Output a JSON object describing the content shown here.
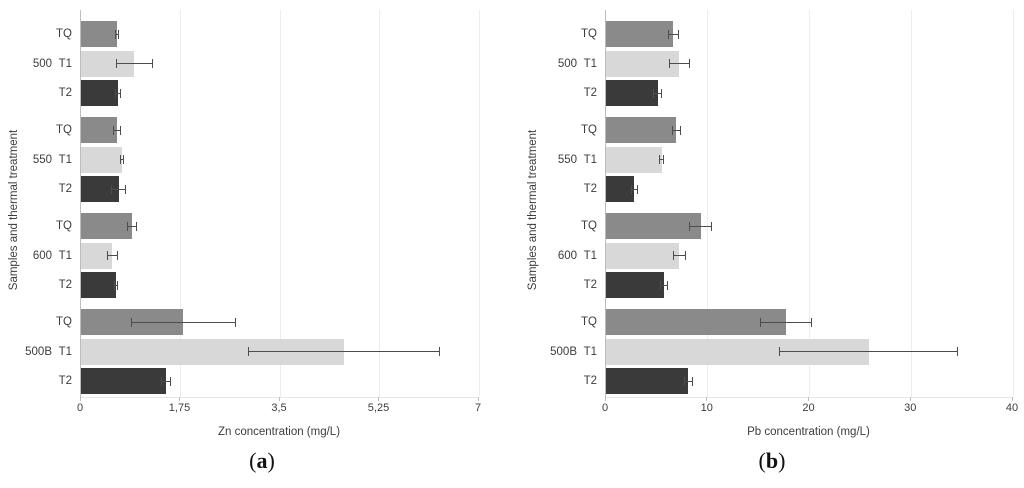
{
  "figure": {
    "background": "#ffffff",
    "text_color": "#3d3d3d",
    "gridline_color": "#ededed",
    "axis_line_color": "#bdbdbd",
    "error_bar_color": "#4d4d4d"
  },
  "chart_data": [
    {
      "type": "bar",
      "orientation": "horizontal",
      "xlabel": "Zn concentration (mg/L)",
      "ylabel": "Samples and thermal treatment",
      "caption": {
        "open": "(",
        "letter": "a",
        "close": ")"
      },
      "xlim": [
        0,
        7
      ],
      "grid": "vertical",
      "legend": "none",
      "xticks": [
        {
          "value": 0,
          "label": "0"
        },
        {
          "value": 1.75,
          "label": "1,75"
        },
        {
          "value": 3.5,
          "label": "3,5"
        },
        {
          "value": 5.25,
          "label": "5,25"
        },
        {
          "value": 7,
          "label": "7"
        }
      ],
      "series_colors": {
        "TQ": "#8a8a8a",
        "T1": "#d8d8d8",
        "T2": "#3a3a3a"
      },
      "groups": [
        {
          "label": "500",
          "bars": [
            {
              "treatment": "TQ",
              "value": 0.63,
              "error": 0.03
            },
            {
              "treatment": "T1",
              "value": 0.94,
              "error": 0.32
            },
            {
              "treatment": "T2",
              "value": 0.65,
              "error": 0.04
            }
          ]
        },
        {
          "label": "550",
          "bars": [
            {
              "treatment": "TQ",
              "value": 0.64,
              "error": 0.06
            },
            {
              "treatment": "T1",
              "value": 0.72,
              "error": 0.02
            },
            {
              "treatment": "T2",
              "value": 0.66,
              "error": 0.12
            }
          ]
        },
        {
          "label": "600",
          "bars": [
            {
              "treatment": "TQ",
              "value": 0.9,
              "error": 0.08
            },
            {
              "treatment": "T1",
              "value": 0.55,
              "error": 0.09
            },
            {
              "treatment": "T2",
              "value": 0.62,
              "error": 0.03
            }
          ]
        },
        {
          "label": "500B",
          "bars": [
            {
              "treatment": "TQ",
              "value": 1.8,
              "error": 0.92
            },
            {
              "treatment": "T1",
              "value": 4.63,
              "error": 1.68
            },
            {
              "treatment": "T2",
              "value": 1.5,
              "error": 0.08
            }
          ]
        }
      ]
    },
    {
      "type": "bar",
      "orientation": "horizontal",
      "xlabel": "Pb concentration (mg/L)",
      "ylabel": "Samples and thermal treatment",
      "caption": {
        "open": "(",
        "letter": "b",
        "close": ")"
      },
      "xlim": [
        0,
        40
      ],
      "grid": "vertical",
      "legend": "none",
      "xticks": [
        {
          "value": 0,
          "label": "0"
        },
        {
          "value": 10,
          "label": "10"
        },
        {
          "value": 20,
          "label": "20"
        },
        {
          "value": 30,
          "label": "30"
        },
        {
          "value": 40,
          "label": "40"
        }
      ],
      "series_colors": {
        "TQ": "#8a8a8a",
        "T1": "#d8d8d8",
        "T2": "#3a3a3a"
      },
      "groups": [
        {
          "label": "500",
          "bars": [
            {
              "treatment": "TQ",
              "value": 6.6,
              "error": 0.5
            },
            {
              "treatment": "T1",
              "value": 7.2,
              "error": 1.0
            },
            {
              "treatment": "T2",
              "value": 5.1,
              "error": 0.4
            }
          ]
        },
        {
          "label": "550",
          "bars": [
            {
              "treatment": "TQ",
              "value": 6.9,
              "error": 0.4
            },
            {
              "treatment": "T1",
              "value": 5.5,
              "error": 0.2
            },
            {
              "treatment": "T2",
              "value": 2.8,
              "error": 0.3
            }
          ]
        },
        {
          "label": "600",
          "bars": [
            {
              "treatment": "TQ",
              "value": 9.3,
              "error": 1.1
            },
            {
              "treatment": "T1",
              "value": 7.2,
              "error": 0.6
            },
            {
              "treatment": "T2",
              "value": 5.7,
              "error": 0.3
            }
          ]
        },
        {
          "label": "500B",
          "bars": [
            {
              "treatment": "TQ",
              "value": 17.7,
              "error": 2.5
            },
            {
              "treatment": "T1",
              "value": 25.8,
              "error": 8.7
            },
            {
              "treatment": "T2",
              "value": 8.1,
              "error": 0.4
            }
          ]
        }
      ]
    }
  ]
}
